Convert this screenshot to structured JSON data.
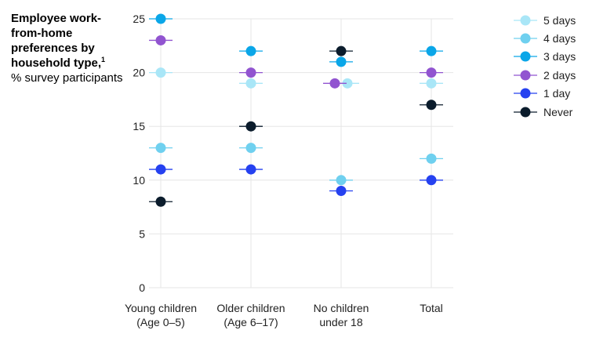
{
  "title": {
    "bold": "Employee work-from-home preferences by household type,",
    "footnote": "1",
    "subtitle": "% survey participants"
  },
  "chart_data": {
    "type": "scatter",
    "title": "Employee work-from-home preferences by household type",
    "ylabel": "% survey participants",
    "ylim": [
      0,
      25
    ],
    "yticks": [
      0,
      5,
      10,
      15,
      20,
      25
    ],
    "categories": [
      [
        "Young children",
        "(Age 0–5)"
      ],
      [
        "Older children",
        "(Age 6–17)"
      ],
      [
        "No children",
        "under 18"
      ],
      [
        "Total"
      ]
    ],
    "series": [
      {
        "name": "5 days",
        "color": "#a9e6f7",
        "values": [
          20,
          19,
          19,
          19
        ]
      },
      {
        "name": "4 days",
        "color": "#6fd0ef",
        "values": [
          13,
          13,
          10,
          12
        ]
      },
      {
        "name": "3 days",
        "color": "#0aa6e8",
        "values": [
          25,
          22,
          21,
          22
        ]
      },
      {
        "name": "2 days",
        "color": "#9154d0",
        "values": [
          23,
          20,
          19,
          20
        ]
      },
      {
        "name": "1 day",
        "color": "#2541f0",
        "values": [
          11,
          11,
          9,
          10
        ]
      },
      {
        "name": "Never",
        "color": "#0b1c2c",
        "values": [
          8,
          15,
          22,
          17
        ]
      }
    ],
    "legend_position": "top-right"
  }
}
